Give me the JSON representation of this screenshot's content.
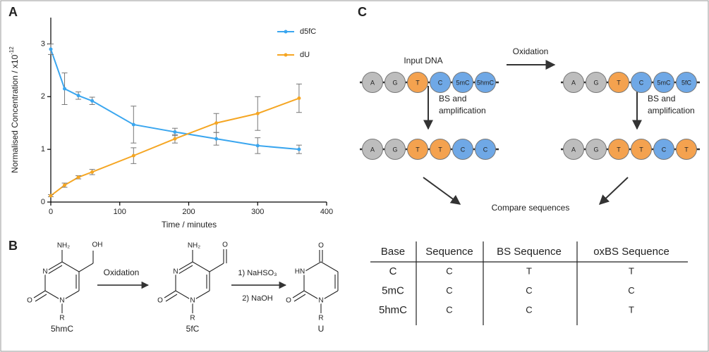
{
  "panel_labels": [
    "A",
    "B",
    "C"
  ],
  "chart_data": {
    "type": "line",
    "x_label": "Time / minutes",
    "y_label": "Normalised Concentration / x10",
    "y_label_exponent": "-12",
    "xlim": [
      0,
      400
    ],
    "ylim": [
      0,
      3.5
    ],
    "xticks": [
      0,
      100,
      200,
      300,
      400
    ],
    "yticks": [
      0,
      1,
      2,
      3
    ],
    "legend": "upper right",
    "x": [
      0,
      20,
      40,
      60,
      120,
      180,
      240,
      300,
      360
    ],
    "series": [
      {
        "name": "d5fC",
        "color": "#3aa6ef",
        "values": [
          2.9,
          2.15,
          2.02,
          1.92,
          1.47,
          1.33,
          1.2,
          1.07,
          1.0
        ],
        "errors": [
          0.1,
          0.3,
          0.07,
          0.07,
          0.35,
          0.07,
          0.12,
          0.15,
          0.08
        ]
      },
      {
        "name": "dU",
        "color": "#f5a623",
        "values": [
          0.12,
          0.32,
          0.47,
          0.57,
          0.88,
          1.2,
          1.5,
          1.68,
          1.97
        ],
        "errors": [
          0.02,
          0.04,
          0.03,
          0.05,
          0.15,
          0.08,
          0.18,
          0.32,
          0.27
        ]
      }
    ]
  },
  "scheme": {
    "molecules": [
      {
        "name": "5hmC",
        "atoms": [
          "NH₂",
          "OH",
          "N",
          "O",
          "N",
          "R"
        ]
      },
      {
        "name": "5fC",
        "atoms": [
          "NH₂",
          "O",
          "N",
          "O",
          "N",
          "R"
        ]
      },
      {
        "name": "U",
        "atoms": [
          "O",
          "HN",
          "O",
          "N",
          "R"
        ]
      }
    ],
    "reactions": [
      {
        "above": "Oxidation"
      },
      {
        "above": "1) NaHSO₃",
        "below": "2) NaOH"
      }
    ]
  },
  "workflow": {
    "input_label": "Input DNA",
    "oxidation_label": "Oxidation",
    "bs_labels": [
      [
        "BS and",
        "amplification"
      ],
      [
        "BS and",
        "amplification"
      ]
    ],
    "compare_label": "Compare sequences",
    "strands": [
      {
        "beads": [
          "A",
          "G",
          "T",
          "C",
          "5mC",
          "5hmC"
        ],
        "colors": [
          "#bdbdbd",
          "#bdbdbd",
          "#f4a24f",
          "#6fa8e6",
          "#6fa8e6",
          "#6fa8e6"
        ]
      },
      {
        "beads": [
          "A",
          "G",
          "T",
          "C",
          "5mC",
          "5fC"
        ],
        "colors": [
          "#bdbdbd",
          "#bdbdbd",
          "#f4a24f",
          "#6fa8e6",
          "#6fa8e6",
          "#6fa8e6"
        ]
      },
      {
        "beads": [
          "A",
          "G",
          "T",
          "T",
          "C",
          "C"
        ],
        "colors": [
          "#bdbdbd",
          "#bdbdbd",
          "#f4a24f",
          "#f4a24f",
          "#6fa8e6",
          "#6fa8e6"
        ]
      },
      {
        "beads": [
          "A",
          "G",
          "T",
          "T",
          "C",
          "T"
        ],
        "colors": [
          "#bdbdbd",
          "#bdbdbd",
          "#f4a24f",
          "#f4a24f",
          "#6fa8e6",
          "#f4a24f"
        ]
      }
    ]
  },
  "table": {
    "header": [
      "Base",
      "Sequence",
      "BS Sequence",
      "oxBS Sequence"
    ],
    "rows": [
      [
        "C",
        "C",
        "T",
        "T"
      ],
      [
        "5mC",
        "C",
        "C",
        "C"
      ],
      [
        "5hmC",
        "C",
        "C",
        "T"
      ]
    ]
  }
}
